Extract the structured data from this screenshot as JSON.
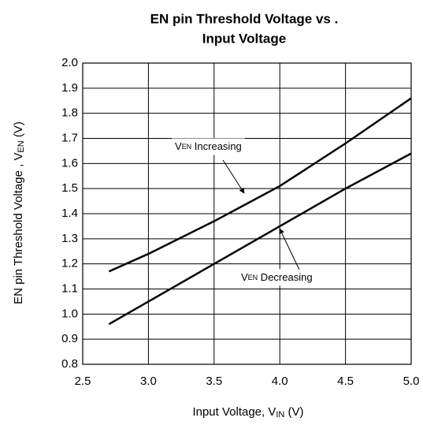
{
  "chart_data": {
    "type": "line",
    "title": [
      "EN pin Threshold Voltage vs .",
      "Input Voltage"
    ],
    "x_label": {
      "text": "Input Voltage, V",
      "sub": "IN",
      "unit": " (V)"
    },
    "y_label": {
      "text": "EN pin Threshold Voltage , V",
      "sub": "EN",
      "unit": " (V)"
    },
    "xlim": [
      2.5,
      5.0
    ],
    "xticks": [
      2.5,
      {
        "value": 3,
        "label": "3.0"
      },
      3.5,
      {
        "value": 4,
        "label": "4.0"
      },
      4.5,
      {
        "value": 5,
        "label": "5.0"
      }
    ],
    "ylim": [
      0.8,
      2.0
    ],
    "yticks": [
      0.8,
      0.9,
      {
        "value": 1,
        "label": "1.0"
      },
      1.1,
      1.2,
      1.3,
      1.4,
      1.5,
      1.6,
      1.7,
      1.8,
      1.9,
      {
        "value": 2,
        "label": "2.0"
      }
    ],
    "grid": true,
    "series": [
      {
        "name": {
          "prefix": "V",
          "sub": "EN",
          "text": " Increasing"
        },
        "color": "#000000",
        "x": [
          2.7,
          3.0,
          3.5,
          4.0,
          4.5,
          5.0
        ],
        "values": [
          1.17,
          1.24,
          1.37,
          1.51,
          1.68,
          1.86
        ]
      },
      {
        "name": {
          "prefix": "V",
          "sub": "EN",
          "text": " Decreasing"
        },
        "color": "#000000",
        "x": [
          2.7,
          3.0,
          3.5,
          4.0,
          4.5,
          5.0
        ],
        "values": [
          0.96,
          1.05,
          1.2,
          1.35,
          1.5,
          1.64
        ]
      }
    ]
  }
}
